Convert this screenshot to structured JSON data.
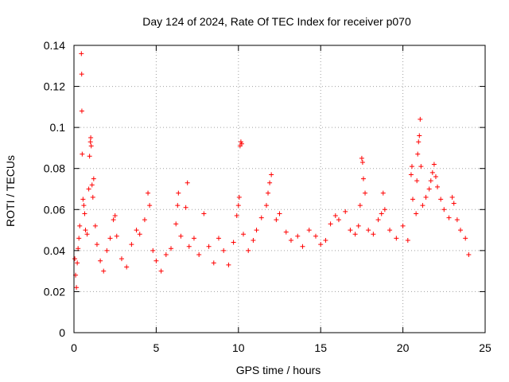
{
  "chart_data": {
    "type": "scatter",
    "title": "Day 124 of 2024, Rate Of TEC Index for receiver p070",
    "xlabel": "GPS time / hours",
    "ylabel": "ROTI / TECUs",
    "xlim": [
      0,
      25
    ],
    "ylim": [
      0,
      0.14
    ],
    "x_ticks": [
      0,
      5,
      10,
      15,
      20,
      25
    ],
    "y_ticks": [
      0,
      0.02,
      0.04,
      0.06,
      0.08,
      0.1,
      0.12,
      0.14
    ],
    "x_tick_labels": [
      "0",
      "5",
      "10",
      "15",
      "20",
      "25"
    ],
    "y_tick_labels": [
      "0",
      "0.02",
      "0.04",
      "0.06",
      "0.08",
      "0.1",
      "0.12",
      "0.14"
    ],
    "grid": true,
    "marker": "+",
    "color": "#ff0000",
    "series": [
      {
        "name": "ROTI",
        "points": [
          [
            0.05,
            0.036
          ],
          [
            0.1,
            0.028
          ],
          [
            0.15,
            0.022
          ],
          [
            0.2,
            0.034
          ],
          [
            0.25,
            0.041
          ],
          [
            0.3,
            0.046
          ],
          [
            0.35,
            0.052
          ],
          [
            0.45,
            0.136
          ],
          [
            0.47,
            0.126
          ],
          [
            0.48,
            0.108
          ],
          [
            0.5,
            0.087
          ],
          [
            0.55,
            0.065
          ],
          [
            0.6,
            0.062
          ],
          [
            0.65,
            0.058
          ],
          [
            0.7,
            0.05
          ],
          [
            0.8,
            0.048
          ],
          [
            0.9,
            0.07
          ],
          [
            0.95,
            0.086
          ],
          [
            1.0,
            0.093
          ],
          [
            1.02,
            0.095
          ],
          [
            1.05,
            0.091
          ],
          [
            1.1,
            0.072
          ],
          [
            1.15,
            0.066
          ],
          [
            1.2,
            0.075
          ],
          [
            1.3,
            0.052
          ],
          [
            1.4,
            0.043
          ],
          [
            1.6,
            0.035
          ],
          [
            1.8,
            0.03
          ],
          [
            2.0,
            0.04
          ],
          [
            2.2,
            0.046
          ],
          [
            2.4,
            0.055
          ],
          [
            2.5,
            0.057
          ],
          [
            2.6,
            0.047
          ],
          [
            2.9,
            0.036
          ],
          [
            3.2,
            0.032
          ],
          [
            3.5,
            0.043
          ],
          [
            3.8,
            0.05
          ],
          [
            4.0,
            0.048
          ],
          [
            4.3,
            0.055
          ],
          [
            4.5,
            0.068
          ],
          [
            4.6,
            0.062
          ],
          [
            4.8,
            0.04
          ],
          [
            5.0,
            0.035
          ],
          [
            5.3,
            0.03
          ],
          [
            5.6,
            0.038
          ],
          [
            5.9,
            0.041
          ],
          [
            6.2,
            0.053
          ],
          [
            6.3,
            0.062
          ],
          [
            6.35,
            0.068
          ],
          [
            6.5,
            0.047
          ],
          [
            6.8,
            0.061
          ],
          [
            6.9,
            0.073
          ],
          [
            7.0,
            0.042
          ],
          [
            7.3,
            0.046
          ],
          [
            7.6,
            0.038
          ],
          [
            7.9,
            0.058
          ],
          [
            8.2,
            0.042
          ],
          [
            8.5,
            0.034
          ],
          [
            8.8,
            0.046
          ],
          [
            9.1,
            0.04
          ],
          [
            9.4,
            0.033
          ],
          [
            9.7,
            0.044
          ],
          [
            9.9,
            0.057
          ],
          [
            10.0,
            0.062
          ],
          [
            10.05,
            0.066
          ],
          [
            10.1,
            0.091
          ],
          [
            10.15,
            0.093
          ],
          [
            10.2,
            0.092
          ],
          [
            10.3,
            0.048
          ],
          [
            10.6,
            0.04
          ],
          [
            10.9,
            0.045
          ],
          [
            11.1,
            0.05
          ],
          [
            11.4,
            0.056
          ],
          [
            11.7,
            0.062
          ],
          [
            11.8,
            0.068
          ],
          [
            11.9,
            0.073
          ],
          [
            12.0,
            0.077
          ],
          [
            12.3,
            0.055
          ],
          [
            12.5,
            0.058
          ],
          [
            12.9,
            0.049
          ],
          [
            13.2,
            0.045
          ],
          [
            13.6,
            0.047
          ],
          [
            13.9,
            0.042
          ],
          [
            14.3,
            0.05
          ],
          [
            14.7,
            0.047
          ],
          [
            15.0,
            0.043
          ],
          [
            15.3,
            0.045
          ],
          [
            15.6,
            0.053
          ],
          [
            15.9,
            0.057
          ],
          [
            16.1,
            0.055
          ],
          [
            16.5,
            0.059
          ],
          [
            16.8,
            0.05
          ],
          [
            17.1,
            0.048
          ],
          [
            17.3,
            0.052
          ],
          [
            17.4,
            0.062
          ],
          [
            17.5,
            0.085
          ],
          [
            17.55,
            0.083
          ],
          [
            17.6,
            0.075
          ],
          [
            17.7,
            0.068
          ],
          [
            17.9,
            0.05
          ],
          [
            18.2,
            0.048
          ],
          [
            18.5,
            0.055
          ],
          [
            18.7,
            0.058
          ],
          [
            18.8,
            0.068
          ],
          [
            18.9,
            0.06
          ],
          [
            19.2,
            0.05
          ],
          [
            19.6,
            0.046
          ],
          [
            20.0,
            0.052
          ],
          [
            20.3,
            0.045
          ],
          [
            20.5,
            0.077
          ],
          [
            20.55,
            0.081
          ],
          [
            20.6,
            0.065
          ],
          [
            20.8,
            0.058
          ],
          [
            20.85,
            0.074
          ],
          [
            20.9,
            0.087
          ],
          [
            20.95,
            0.093
          ],
          [
            21.0,
            0.096
          ],
          [
            21.05,
            0.104
          ],
          [
            21.1,
            0.081
          ],
          [
            21.2,
            0.062
          ],
          [
            21.4,
            0.066
          ],
          [
            21.6,
            0.07
          ],
          [
            21.7,
            0.074
          ],
          [
            21.8,
            0.078
          ],
          [
            21.9,
            0.082
          ],
          [
            22.0,
            0.076
          ],
          [
            22.1,
            0.071
          ],
          [
            22.3,
            0.065
          ],
          [
            22.5,
            0.06
          ],
          [
            22.8,
            0.056
          ],
          [
            23.0,
            0.066
          ],
          [
            23.1,
            0.063
          ],
          [
            23.3,
            0.055
          ],
          [
            23.5,
            0.05
          ],
          [
            23.8,
            0.046
          ],
          [
            24.0,
            0.038
          ]
        ]
      }
    ]
  }
}
